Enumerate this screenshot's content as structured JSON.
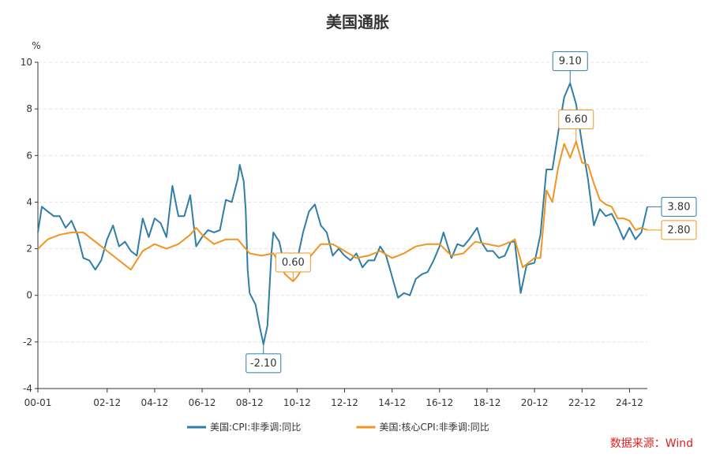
{
  "chart_data": {
    "type": "line",
    "title": "美国通胀",
    "ylabel": "%",
    "ylim": [
      -4,
      10
    ],
    "yticks": [
      -4,
      -2,
      0,
      2,
      4,
      6,
      8,
      10
    ],
    "xticks": [
      "00-01",
      "02-12",
      "04-12",
      "06-12",
      "08-12",
      "10-12",
      "12-12",
      "14-12",
      "16-12",
      "18-12",
      "20-12",
      "22-12",
      "24-12"
    ],
    "grid": "horizontal dashed",
    "legend_position": "bottom-center",
    "series": [
      {
        "name": "美国:CPI:非季调:同比",
        "color": "#2e7ea6",
        "points": [
          [
            "2000-01",
            2.7
          ],
          [
            "2000-03",
            3.8
          ],
          [
            "2000-06",
            3.6
          ],
          [
            "2000-09",
            3.4
          ],
          [
            "2000-12",
            3.4
          ],
          [
            "2001-03",
            2.9
          ],
          [
            "2001-06",
            3.2
          ],
          [
            "2001-09",
            2.6
          ],
          [
            "2001-12",
            1.6
          ],
          [
            "2002-03",
            1.5
          ],
          [
            "2002-06",
            1.1
          ],
          [
            "2002-09",
            1.5
          ],
          [
            "2002-12",
            2.4
          ],
          [
            "2003-03",
            3.0
          ],
          [
            "2003-06",
            2.1
          ],
          [
            "2003-09",
            2.3
          ],
          [
            "2003-12",
            1.9
          ],
          [
            "2004-03",
            1.7
          ],
          [
            "2004-06",
            3.3
          ],
          [
            "2004-09",
            2.5
          ],
          [
            "2004-12",
            3.3
          ],
          [
            "2005-03",
            3.1
          ],
          [
            "2005-06",
            2.5
          ],
          [
            "2005-09",
            4.7
          ],
          [
            "2005-12",
            3.4
          ],
          [
            "2006-03",
            3.4
          ],
          [
            "2006-06",
            4.3
          ],
          [
            "2006-09",
            2.1
          ],
          [
            "2006-12",
            2.5
          ],
          [
            "2007-03",
            2.8
          ],
          [
            "2007-06",
            2.7
          ],
          [
            "2007-09",
            2.8
          ],
          [
            "2007-12",
            4.1
          ],
          [
            "2008-03",
            4.0
          ],
          [
            "2008-06",
            5.0
          ],
          [
            "2008-07",
            5.6
          ],
          [
            "2008-09",
            4.9
          ],
          [
            "2008-10",
            3.7
          ],
          [
            "2008-11",
            1.1
          ],
          [
            "2008-12",
            0.1
          ],
          [
            "2009-03",
            -0.4
          ],
          [
            "2009-05",
            -1.3
          ],
          [
            "2009-07",
            -2.1
          ],
          [
            "2009-09",
            -1.3
          ],
          [
            "2009-11",
            1.8
          ],
          [
            "2009-12",
            2.7
          ],
          [
            "2010-03",
            2.3
          ],
          [
            "2010-06",
            1.1
          ],
          [
            "2010-09",
            1.1
          ],
          [
            "2010-12",
            1.5
          ],
          [
            "2011-03",
            2.7
          ],
          [
            "2011-06",
            3.6
          ],
          [
            "2011-09",
            3.9
          ],
          [
            "2011-12",
            3.0
          ],
          [
            "2012-03",
            2.7
          ],
          [
            "2012-06",
            1.7
          ],
          [
            "2012-09",
            2.0
          ],
          [
            "2012-12",
            1.7
          ],
          [
            "2013-03",
            1.5
          ],
          [
            "2013-06",
            1.8
          ],
          [
            "2013-09",
            1.2
          ],
          [
            "2013-12",
            1.5
          ],
          [
            "2014-03",
            1.5
          ],
          [
            "2014-06",
            2.1
          ],
          [
            "2014-09",
            1.7
          ],
          [
            "2014-12",
            0.8
          ],
          [
            "2015-03",
            -0.1
          ],
          [
            "2015-06",
            0.1
          ],
          [
            "2015-09",
            0.0
          ],
          [
            "2015-12",
            0.7
          ],
          [
            "2016-03",
            0.9
          ],
          [
            "2016-06",
            1.0
          ],
          [
            "2016-09",
            1.5
          ],
          [
            "2016-12",
            2.1
          ],
          [
            "2017-02",
            2.7
          ],
          [
            "2017-06",
            1.6
          ],
          [
            "2017-09",
            2.2
          ],
          [
            "2017-12",
            2.1
          ],
          [
            "2018-03",
            2.4
          ],
          [
            "2018-07",
            2.9
          ],
          [
            "2018-09",
            2.3
          ],
          [
            "2018-12",
            1.9
          ],
          [
            "2019-03",
            1.9
          ],
          [
            "2019-06",
            1.6
          ],
          [
            "2019-09",
            1.7
          ],
          [
            "2019-12",
            2.3
          ],
          [
            "2020-02",
            2.3
          ],
          [
            "2020-05",
            0.1
          ],
          [
            "2020-08",
            1.3
          ],
          [
            "2020-12",
            1.4
          ],
          [
            "2021-03",
            2.6
          ],
          [
            "2021-06",
            5.4
          ],
          [
            "2021-09",
            5.4
          ],
          [
            "2021-12",
            7.0
          ],
          [
            "2022-03",
            8.5
          ],
          [
            "2022-06",
            9.1
          ],
          [
            "2022-09",
            8.2
          ],
          [
            "2022-12",
            6.5
          ],
          [
            "2023-03",
            5.0
          ],
          [
            "2023-06",
            3.0
          ],
          [
            "2023-09",
            3.7
          ],
          [
            "2023-12",
            3.4
          ],
          [
            "2024-03",
            3.5
          ],
          [
            "2024-06",
            3.0
          ],
          [
            "2024-09",
            2.4
          ],
          [
            "2024-12",
            2.9
          ],
          [
            "2025-03",
            2.4
          ],
          [
            "2025-06",
            2.7
          ],
          [
            "2025-09",
            3.8
          ]
        ],
        "annotations": [
          {
            "x": "2009-07",
            "y": -2.1,
            "label": "-2.10"
          },
          {
            "x": "2022-06",
            "y": 9.1,
            "label": "9.10"
          },
          {
            "x": "2025-09",
            "y": 3.8,
            "label": "3.80"
          }
        ]
      },
      {
        "name": "美国:核心CPI:非季调:同比",
        "color": "#f29422",
        "points": [
          [
            "2000-01",
            2.0
          ],
          [
            "2000-06",
            2.4
          ],
          [
            "2000-12",
            2.6
          ],
          [
            "2001-06",
            2.7
          ],
          [
            "2001-12",
            2.7
          ],
          [
            "2002-06",
            2.3
          ],
          [
            "2002-12",
            1.9
          ],
          [
            "2003-06",
            1.5
          ],
          [
            "2003-12",
            1.1
          ],
          [
            "2004-06",
            1.9
          ],
          [
            "2004-12",
            2.2
          ],
          [
            "2005-06",
            2.0
          ],
          [
            "2005-12",
            2.2
          ],
          [
            "2006-06",
            2.6
          ],
          [
            "2006-09",
            2.9
          ],
          [
            "2006-12",
            2.6
          ],
          [
            "2007-06",
            2.2
          ],
          [
            "2007-12",
            2.4
          ],
          [
            "2008-06",
            2.4
          ],
          [
            "2008-12",
            1.8
          ],
          [
            "2009-06",
            1.7
          ],
          [
            "2009-12",
            1.8
          ],
          [
            "2010-06",
            0.9
          ],
          [
            "2010-10",
            0.6
          ],
          [
            "2010-12",
            0.8
          ],
          [
            "2011-06",
            1.6
          ],
          [
            "2011-12",
            2.2
          ],
          [
            "2012-06",
            2.2
          ],
          [
            "2012-12",
            1.9
          ],
          [
            "2013-06",
            1.6
          ],
          [
            "2013-12",
            1.7
          ],
          [
            "2014-06",
            1.9
          ],
          [
            "2014-12",
            1.6
          ],
          [
            "2015-06",
            1.8
          ],
          [
            "2015-12",
            2.1
          ],
          [
            "2016-06",
            2.2
          ],
          [
            "2016-12",
            2.2
          ],
          [
            "2017-06",
            1.7
          ],
          [
            "2017-12",
            1.8
          ],
          [
            "2018-06",
            2.3
          ],
          [
            "2018-12",
            2.2
          ],
          [
            "2019-06",
            2.1
          ],
          [
            "2019-12",
            2.3
          ],
          [
            "2020-02",
            2.4
          ],
          [
            "2020-06",
            1.2
          ],
          [
            "2020-12",
            1.6
          ],
          [
            "2021-03",
            1.6
          ],
          [
            "2021-06",
            4.5
          ],
          [
            "2021-09",
            4.0
          ],
          [
            "2021-12",
            5.5
          ],
          [
            "2022-03",
            6.5
          ],
          [
            "2022-06",
            5.9
          ],
          [
            "2022-09",
            6.6
          ],
          [
            "2022-12",
            5.7
          ],
          [
            "2023-03",
            5.6
          ],
          [
            "2023-06",
            4.8
          ],
          [
            "2023-09",
            4.1
          ],
          [
            "2023-12",
            3.9
          ],
          [
            "2024-03",
            3.8
          ],
          [
            "2024-06",
            3.3
          ],
          [
            "2024-09",
            3.3
          ],
          [
            "2024-12",
            3.2
          ],
          [
            "2025-03",
            2.8
          ],
          [
            "2025-06",
            2.9
          ],
          [
            "2025-09",
            2.8
          ]
        ],
        "annotations": [
          {
            "x": "2010-10",
            "y": 0.6,
            "label": "0.60"
          },
          {
            "x": "2022-09",
            "y": 6.6,
            "label": "6.60"
          },
          {
            "x": "2025-09",
            "y": 2.8,
            "label": "2.80"
          }
        ]
      }
    ]
  },
  "source_text": "数据来源：Wind"
}
